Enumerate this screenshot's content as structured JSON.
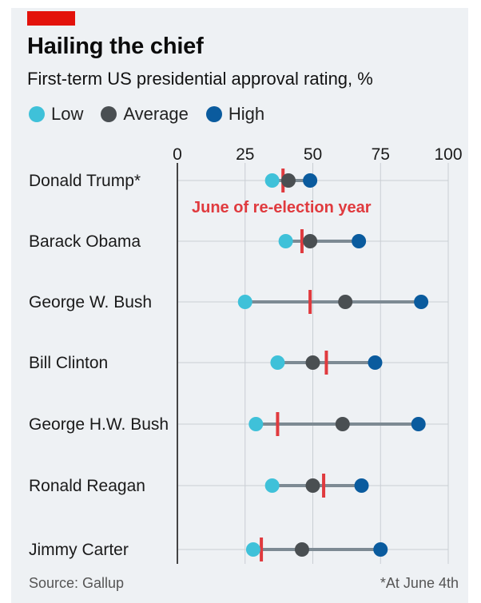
{
  "header": {
    "title": "Hailing the chief",
    "subtitle": "First-term US presidential approval rating, %"
  },
  "legend": [
    {
      "label": "Low",
      "color": "#3fc1d9"
    },
    {
      "label": "Average",
      "color": "#4a4f52"
    },
    {
      "label": "High",
      "color": "#0a5b9e"
    }
  ],
  "chart_data": {
    "type": "dot-range",
    "x_ticks": [
      0,
      25,
      50,
      75,
      100
    ],
    "xlim": [
      0,
      100
    ],
    "grid": true,
    "annotation": "June of re-election year",
    "annotation_color": "#e03a3e",
    "rows": [
      {
        "name": "Donald Trump*",
        "low": 35,
        "average": 41,
        "high": 49,
        "june": 39
      },
      {
        "name": "Barack Obama",
        "low": 40,
        "average": 49,
        "high": 67,
        "june": 46
      },
      {
        "name": "George W. Bush",
        "low": 25,
        "average": 62,
        "high": 90,
        "june": 49
      },
      {
        "name": "Bill Clinton",
        "low": 37,
        "average": 50,
        "high": 73,
        "june": 55
      },
      {
        "name": "George H.W. Bush",
        "low": 29,
        "average": 61,
        "high": 89,
        "june": 37
      },
      {
        "name": "Ronald Reagan",
        "low": 35,
        "average": 50,
        "high": 68,
        "june": 54
      },
      {
        "name": "Jimmy Carter",
        "low": 28,
        "average": 46,
        "high": 75,
        "june": 31
      }
    ]
  },
  "footer": {
    "source": "Source: Gallup",
    "note": "*At June 4th"
  }
}
